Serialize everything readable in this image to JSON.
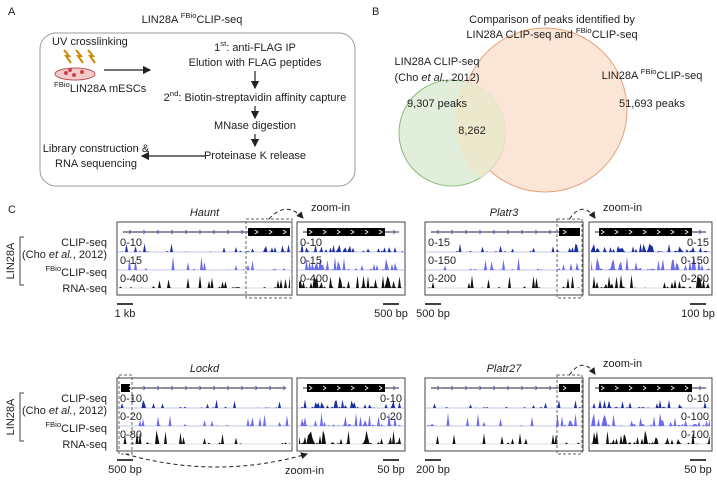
{
  "panel_a": {
    "label": "A",
    "title": {
      "pre": "LIN28A ",
      "sup": "FBio",
      "post": "CLIP-seq"
    },
    "uv": "UV crosslinking",
    "cells": {
      "sup": "FBio",
      "post": "LIN28A mESCs"
    },
    "steps": [
      {
        "pre": "1",
        "sup": "st",
        "post": ": anti-FLAG IP"
      },
      {
        "pre": "Elution with FLAG peptides"
      },
      {
        "pre": "2",
        "sup": "nd",
        "post": ": Biotin-streptavidin affinity capture"
      },
      {
        "pre": "MNase digestion"
      },
      {
        "pre": "Proteinase K release"
      }
    ],
    "final": [
      "Library construction &",
      "RNA sequencing"
    ]
  },
  "panel_b": {
    "label": "B",
    "title": [
      "Comparison of peaks identified by",
      {
        "pre": "LIN28A CLIP-seq and ",
        "sup": "FBio",
        "post": "CLIP-seq"
      }
    ],
    "left_name": "LIN28A CLIP-seq",
    "left_cite": {
      "pre": "(Cho ",
      "em": "et al.",
      "post": ", 2012)"
    },
    "left_peaks": "9,307 peaks",
    "right_name": {
      "pre": "LIN28A ",
      "sup": "FBio",
      "post": "CLIP-seq"
    },
    "right_peaks": "51,693 peaks",
    "overlap": "8,262"
  },
  "panel_c": {
    "label": "C",
    "group": "LIN28A",
    "tracks": {
      "clip": "CLIP-seq",
      "cite": {
        "pre": "(Cho ",
        "em": "et al.",
        "post": ", 2012)"
      },
      "fbio": {
        "sup": "FBio",
        "post": "CLIP-seq"
      },
      "rna": "RNA-seq"
    },
    "zoom": "zoom-in",
    "blocks": [
      {
        "gene": "Haunt",
        "scales": [
          "0-10",
          "0-15",
          "0-400"
        ],
        "zoom_scales": [
          "0-10",
          "0-15",
          "0-400"
        ],
        "bar": "1 kb",
        "zoom_bar": "500 bp"
      },
      {
        "gene": "Platr3",
        "scales": [
          "0-15",
          "0-150",
          "0-200"
        ],
        "zoom_scales": [
          "0-15",
          "0-150",
          "0-200"
        ],
        "bar": "500 bp",
        "zoom_bar": "100 bp"
      },
      {
        "gene": "Lockd",
        "scales": [
          "0-10",
          "0-20",
          "0-80"
        ],
        "zoom_scales": [
          "0-10",
          "0-20"
        ],
        "bar": "500 bp",
        "zoom_bar": "50 bp"
      },
      {
        "gene": "Platr27",
        "scales": [],
        "zoom_scales": [
          "0-10",
          "0-100",
          "0-100"
        ],
        "bar": "200 bp",
        "zoom_bar": "50 bp"
      }
    ]
  }
}
